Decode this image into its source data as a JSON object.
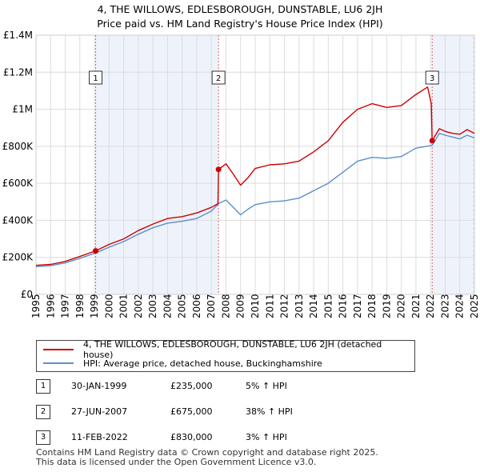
{
  "header": {
    "title_line1": "4, THE WILLOWS, EDLESBOROUGH, DUNSTABLE, LU6 2JH",
    "title_line2": "Price paid vs. HM Land Registry's House Price Index (HPI)"
  },
  "colors": {
    "property": "#cc0000",
    "hpi": "#5b8fc9",
    "shade": "#eef2fb",
    "grid": "#dcdcdc",
    "vline": "#e06060"
  },
  "legend": {
    "property_label": "4, THE WILLOWS, EDLESBOROUGH, DUNSTABLE, LU6 2JH (detached house)",
    "hpi_label": "HPI: Average price, detached house, Buckinghamshire"
  },
  "sales": [
    {
      "num": "1",
      "date": "30-JAN-1999",
      "price": "£235,000",
      "hpi": "5% ↑ HPI"
    },
    {
      "num": "2",
      "date": "27-JUN-2007",
      "price": "£675,000",
      "hpi": "38% ↑ HPI"
    },
    {
      "num": "3",
      "date": "11-FEB-2022",
      "price": "£830,000",
      "hpi": "3% ↑ HPI"
    }
  ],
  "footer": {
    "line1": "Contains HM Land Registry data © Crown copyright and database right 2025.",
    "line2": "This data is licensed under the Open Government Licence v3.0."
  },
  "chart_data": {
    "type": "line",
    "title": "4, THE WILLOWS, EDLESBOROUGH, DUNSTABLE, LU6 2JH",
    "subtitle": "Price paid vs. HM Land Registry's House Price Index (HPI)",
    "xlim": [
      1995,
      2025
    ],
    "ylim": [
      0,
      1400000
    ],
    "x_ticks": [
      "1995",
      "1996",
      "1997",
      "1998",
      "1999",
      "2000",
      "2001",
      "2002",
      "2003",
      "2004",
      "2005",
      "2006",
      "2007",
      "2008",
      "2009",
      "2010",
      "2011",
      "2012",
      "2013",
      "2014",
      "2015",
      "2016",
      "2017",
      "2018",
      "2019",
      "2020",
      "2021",
      "2022",
      "2023",
      "2024",
      "2025"
    ],
    "y_ticks": [
      {
        "value": 0,
        "label": "£0"
      },
      {
        "value": 200000,
        "label": "£200K"
      },
      {
        "value": 400000,
        "label": "£400K"
      },
      {
        "value": 600000,
        "label": "£600K"
      },
      {
        "value": 800000,
        "label": "£800K"
      },
      {
        "value": 1000000,
        "label": "£1M"
      },
      {
        "value": 1200000,
        "label": "£1.2M"
      },
      {
        "value": 1400000,
        "label": "£1.4M"
      }
    ],
    "shaded_ranges": [
      [
        1999.08,
        2007.49
      ],
      [
        2022.11,
        2025
      ]
    ],
    "hatch_from": 2024.9,
    "sale_markers": [
      {
        "label": "1",
        "x": 1999.08,
        "y": 235000
      },
      {
        "label": "2",
        "x": 2007.49,
        "y": 675000
      },
      {
        "label": "3",
        "x": 2022.11,
        "y": 830000
      }
    ],
    "series": [
      {
        "name": "HPI: Average price, detached house, Buckinghamshire",
        "points": [
          [
            1995,
            150000
          ],
          [
            1996,
            155000
          ],
          [
            1997,
            170000
          ],
          [
            1998,
            195000
          ],
          [
            1999.08,
            224000
          ],
          [
            2000,
            255000
          ],
          [
            2001,
            285000
          ],
          [
            2002,
            325000
          ],
          [
            2003,
            360000
          ],
          [
            2004,
            385000
          ],
          [
            2005,
            395000
          ],
          [
            2006,
            410000
          ],
          [
            2007,
            450000
          ],
          [
            2007.49,
            490000
          ],
          [
            2008,
            510000
          ],
          [
            2008.5,
            470000
          ],
          [
            2009,
            430000
          ],
          [
            2009.5,
            460000
          ],
          [
            2010,
            485000
          ],
          [
            2011,
            500000
          ],
          [
            2012,
            505000
          ],
          [
            2013,
            520000
          ],
          [
            2014,
            560000
          ],
          [
            2015,
            600000
          ],
          [
            2016,
            660000
          ],
          [
            2017,
            720000
          ],
          [
            2018,
            740000
          ],
          [
            2019,
            735000
          ],
          [
            2020,
            745000
          ],
          [
            2021,
            790000
          ],
          [
            2022.11,
            805000
          ],
          [
            2022.6,
            870000
          ],
          [
            2023,
            860000
          ],
          [
            2023.5,
            850000
          ],
          [
            2024,
            840000
          ],
          [
            2024.5,
            860000
          ],
          [
            2025,
            845000
          ]
        ]
      },
      {
        "name": "4, THE WILLOWS, EDLESBOROUGH, DUNSTABLE, LU6 2JH (detached house)",
        "points": [
          [
            1995,
            157000
          ],
          [
            1996,
            162000
          ],
          [
            1997,
            178000
          ],
          [
            1998,
            205000
          ],
          [
            1999.08,
            235000
          ],
          [
            2000,
            270000
          ],
          [
            2001,
            300000
          ],
          [
            2002,
            345000
          ],
          [
            2003,
            380000
          ],
          [
            2004,
            410000
          ],
          [
            2005,
            420000
          ],
          [
            2006,
            440000
          ],
          [
            2007,
            470000
          ],
          [
            2007.45,
            490000
          ],
          [
            2007.49,
            675000
          ],
          [
            2008,
            705000
          ],
          [
            2008.5,
            650000
          ],
          [
            2009,
            590000
          ],
          [
            2009.5,
            630000
          ],
          [
            2010,
            680000
          ],
          [
            2011,
            700000
          ],
          [
            2012,
            705000
          ],
          [
            2013,
            720000
          ],
          [
            2014,
            770000
          ],
          [
            2015,
            830000
          ],
          [
            2016,
            930000
          ],
          [
            2017,
            1000000
          ],
          [
            2018,
            1030000
          ],
          [
            2019,
            1010000
          ],
          [
            2020,
            1020000
          ],
          [
            2021,
            1080000
          ],
          [
            2021.8,
            1120000
          ],
          [
            2022.05,
            1030000
          ],
          [
            2022.11,
            830000
          ],
          [
            2022.6,
            895000
          ],
          [
            2023,
            880000
          ],
          [
            2023.5,
            870000
          ],
          [
            2024,
            865000
          ],
          [
            2024.5,
            890000
          ],
          [
            2025,
            870000
          ]
        ]
      }
    ]
  }
}
